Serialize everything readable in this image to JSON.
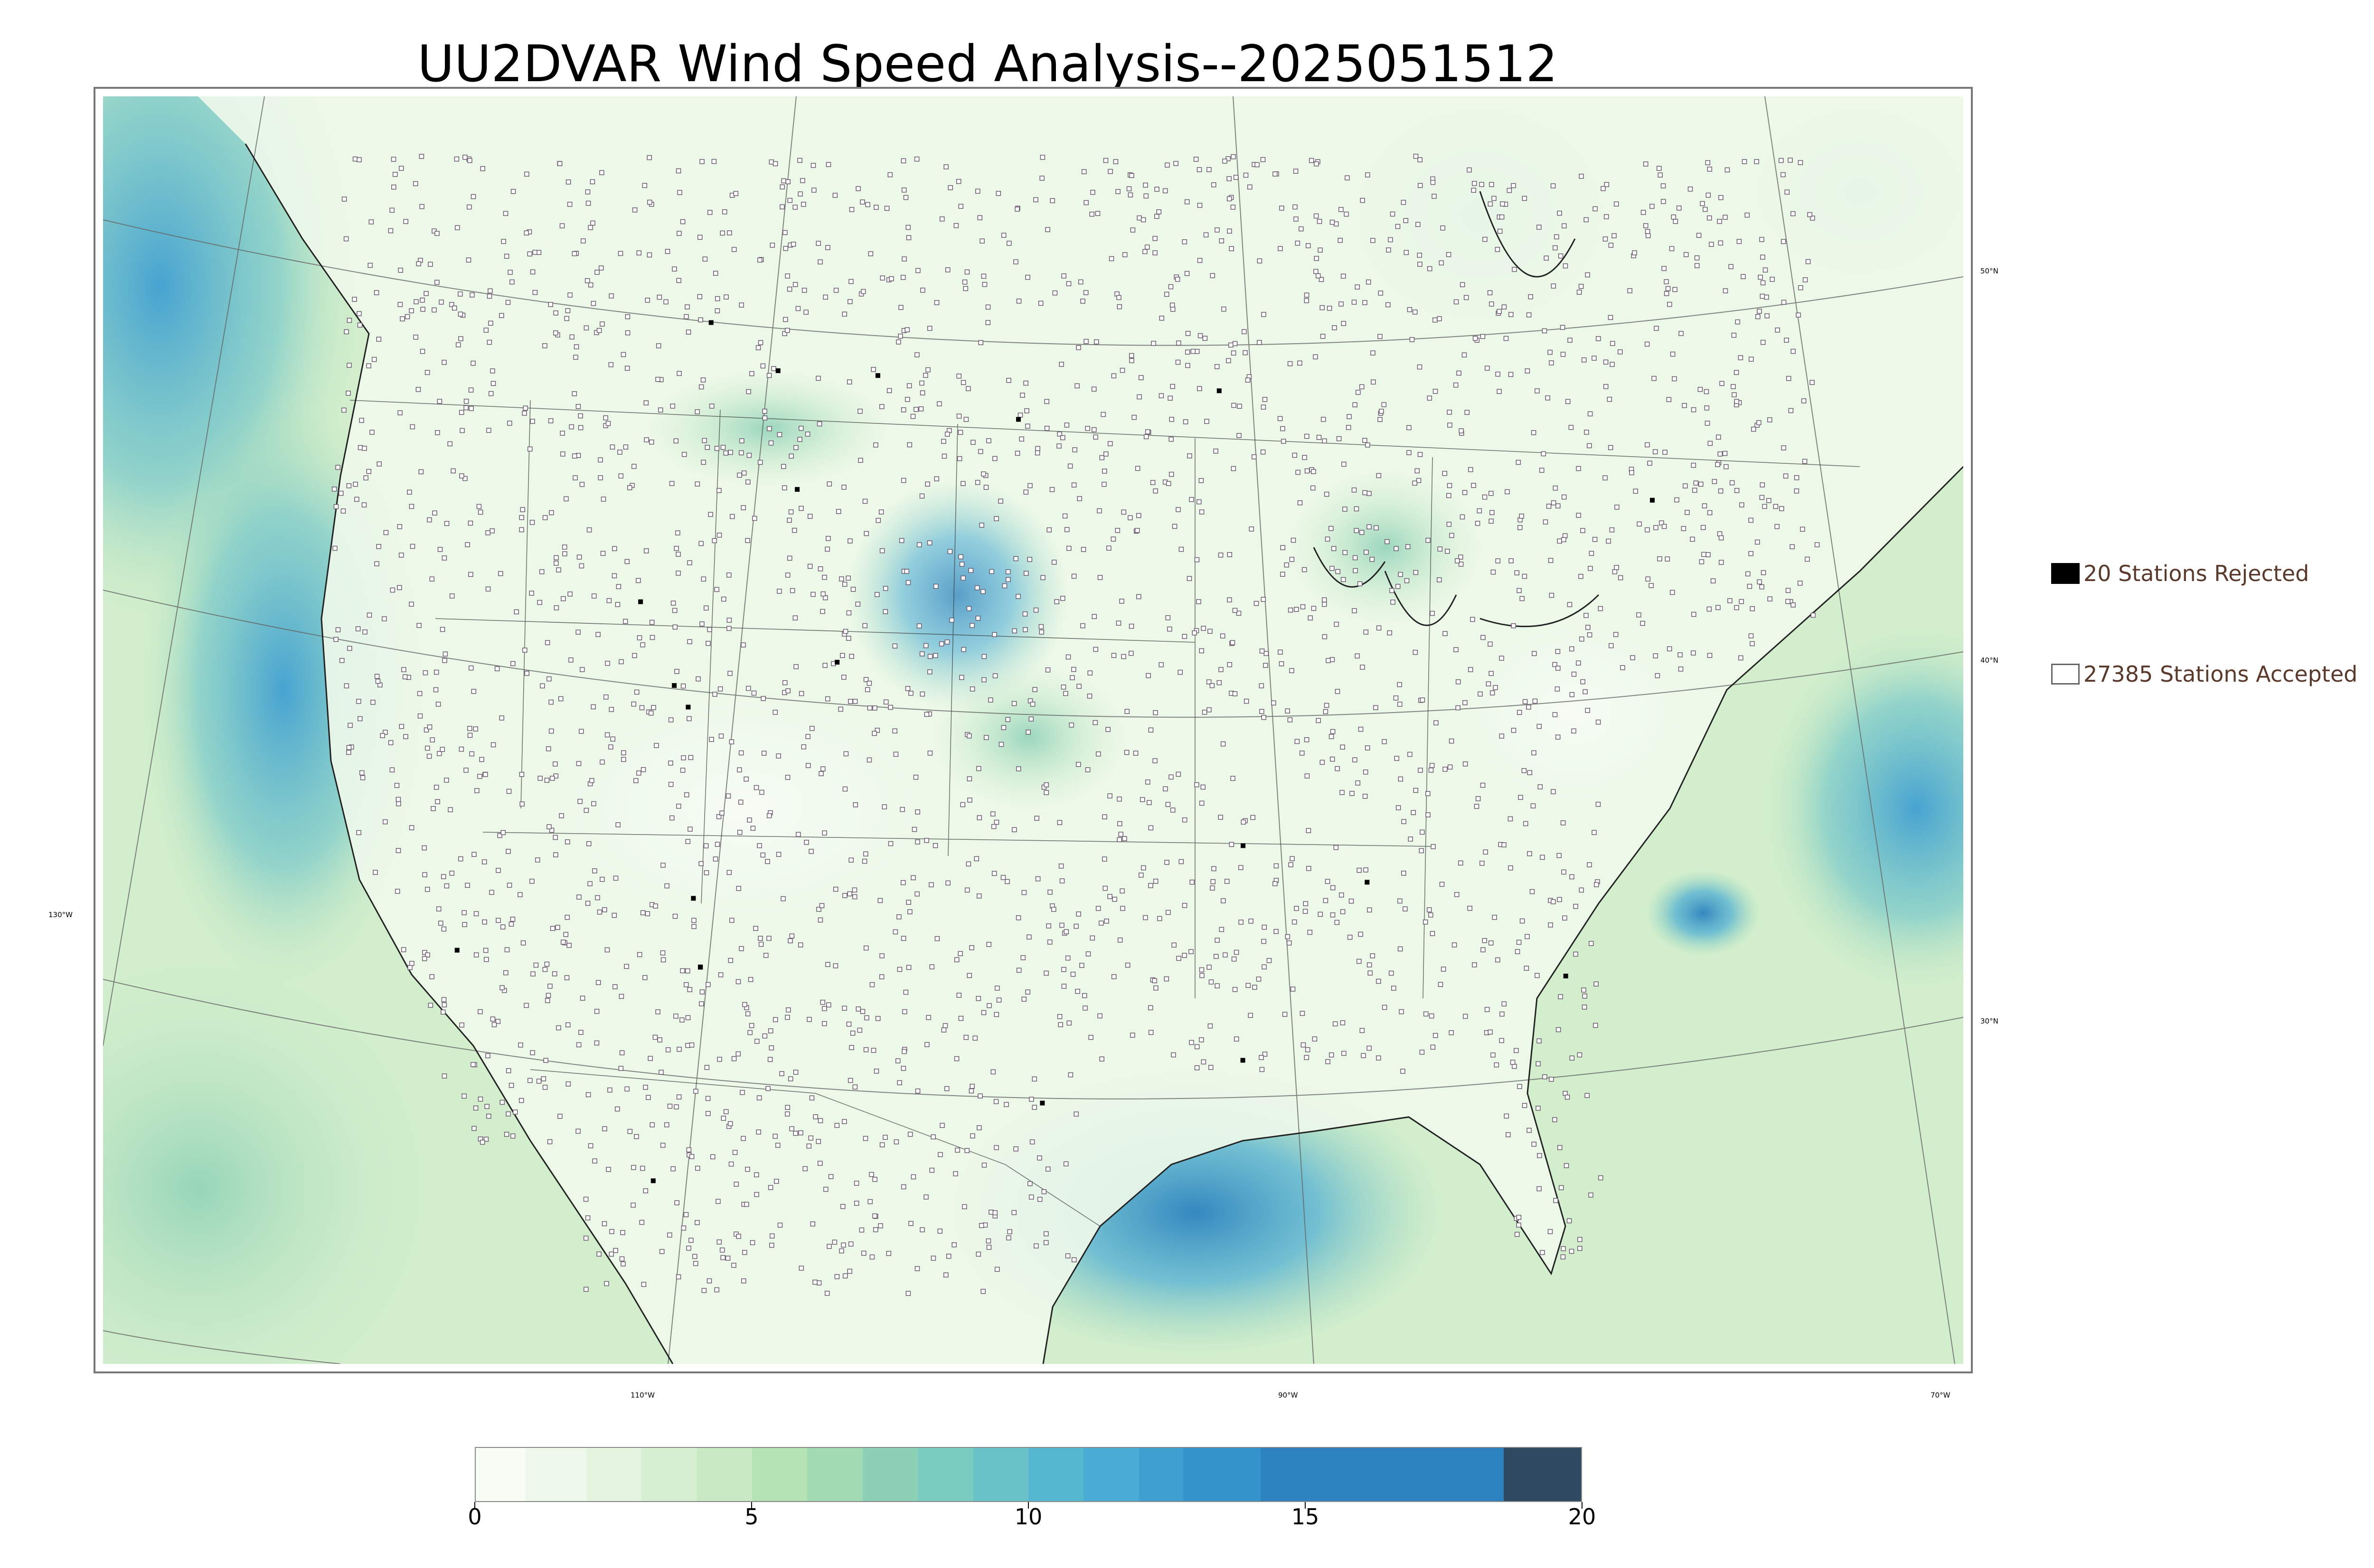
{
  "title": "UU2DVAR Wind Speed Analysis--2025051512",
  "map": {
    "lon_labels": [
      "130°W",
      "110°W",
      "90°W",
      "70°W"
    ],
    "lat_labels": [
      "50°N",
      "40°N",
      "30°N"
    ],
    "colors": {
      "ocean_low": "#e8f5e3",
      "land_low": "#f3faee",
      "wind_mid": "#a9dcb3",
      "wind_high": "#4aa8d6",
      "wind_max": "#2a7fb8",
      "border": "#222222",
      "graticule": "#666666",
      "station_accepted": "#ffffff",
      "station_rejected": "#000000"
    }
  },
  "legend": {
    "rejected": {
      "label": "20 Stations Rejected",
      "icon": "filled-square"
    },
    "accepted": {
      "label": "27385 Stations Accepted",
      "icon": "hollow-square"
    }
  },
  "colorbar": {
    "min": 0,
    "max": 20,
    "ticks": [
      "0",
      "5",
      "10",
      "15",
      "20"
    ],
    "segments": [
      {
        "to": 0.9,
        "color": "#f7fcf5"
      },
      {
        "to": 2.0,
        "color": "#eef8ea"
      },
      {
        "to": 3.0,
        "color": "#e4f4df"
      },
      {
        "to": 4.0,
        "color": "#d6efd1"
      },
      {
        "to": 5.0,
        "color": "#c8eac3"
      },
      {
        "to": 6.0,
        "color": "#b6e3b6"
      },
      {
        "to": 7.0,
        "color": "#a2dab4"
      },
      {
        "to": 8.0,
        "color": "#8cd1b6"
      },
      {
        "to": 9.0,
        "color": "#7acbc0"
      },
      {
        "to": 10.0,
        "color": "#68c2c8"
      },
      {
        "to": 11.0,
        "color": "#56b8d0"
      },
      {
        "to": 12.0,
        "color": "#4aacd4"
      },
      {
        "to": 12.8,
        "color": "#3f9fd1"
      },
      {
        "to": 14.2,
        "color": "#3593cc"
      },
      {
        "to": 18.6,
        "color": "#2b82be"
      },
      {
        "to": 20.0,
        "color": "#2f4a60"
      }
    ]
  }
}
